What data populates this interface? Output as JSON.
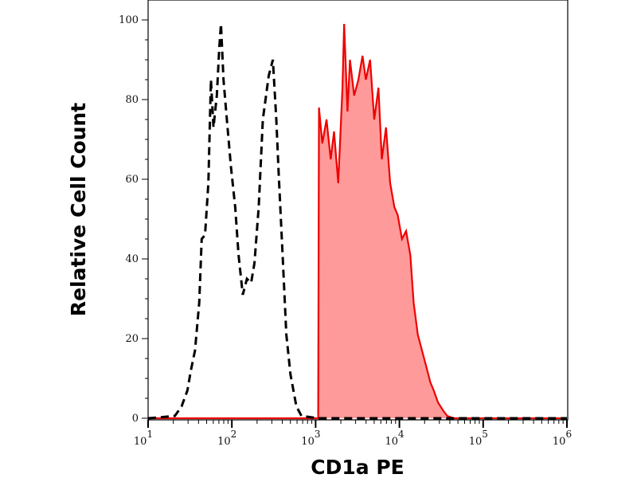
{
  "chart_data": {
    "type": "area",
    "title": "",
    "xlabel": "CD1a PE",
    "ylabel": "Relative Cell Count",
    "x_scale": "log",
    "xlim": [
      10,
      1000000
    ],
    "ylim": [
      0,
      100
    ],
    "x_ticks": [
      {
        "exp": 1,
        "base": "10",
        "sup": "1"
      },
      {
        "exp": 2,
        "base": "10",
        "sup": "2"
      },
      {
        "exp": 3,
        "base": "10",
        "sup": "3"
      },
      {
        "exp": 4,
        "base": "10",
        "sup": "4"
      },
      {
        "exp": 5,
        "base": "10",
        "sup": "5"
      },
      {
        "exp": 6,
        "base": "10",
        "sup": "6"
      }
    ],
    "y_ticks": [
      "0",
      "20",
      "40",
      "60",
      "80",
      "100"
    ],
    "grid": false,
    "series": [
      {
        "style": "dashed-line",
        "color": "#000000",
        "log10_x": [
          1.0,
          1.13,
          1.32,
          1.4,
          1.47,
          1.51,
          1.56,
          1.61,
          1.64,
          1.68,
          1.72,
          1.75,
          1.78,
          1.82,
          1.85,
          1.87,
          1.9,
          1.94,
          1.99,
          2.04,
          2.08,
          2.13,
          2.18,
          2.23,
          2.27,
          2.32,
          2.37,
          2.44,
          2.49,
          2.53,
          2.56,
          2.61,
          2.65,
          2.7,
          2.77,
          2.83,
          3.03,
          6.0
        ],
        "y": [
          0,
          0.2,
          0.6,
          3,
          7,
          12,
          17,
          29,
          45,
          46,
          59,
          85,
          73,
          81,
          93,
          99,
          85,
          75,
          63,
          53,
          41,
          31,
          35,
          34,
          39,
          53,
          75,
          86,
          90,
          75,
          61,
          39,
          21,
          11,
          3,
          0.6,
          0,
          0
        ]
      },
      {
        "style": "filled-area",
        "color": "#ee0000",
        "fill": "#ff9a9a",
        "log10_x": [
          1.0,
          3.03,
          3.04,
          3.08,
          3.13,
          3.18,
          3.22,
          3.27,
          3.32,
          3.34,
          3.38,
          3.41,
          3.46,
          3.51,
          3.56,
          3.6,
          3.65,
          3.7,
          3.75,
          3.79,
          3.84,
          3.89,
          3.94,
          3.98,
          4.03,
          4.08,
          4.13,
          4.17,
          4.22,
          4.27,
          4.32,
          4.37,
          4.41,
          4.46,
          4.52,
          4.57,
          4.65,
          6.0
        ],
        "y": [
          0,
          0,
          78,
          69,
          75,
          65,
          72,
          59,
          83,
          99,
          77,
          90,
          81,
          85,
          91,
          85,
          90,
          75,
          83,
          65,
          73,
          59,
          53,
          51,
          45,
          47,
          41,
          29,
          21,
          17,
          13,
          9,
          7,
          4,
          2,
          0.6,
          0,
          0
        ]
      }
    ]
  }
}
